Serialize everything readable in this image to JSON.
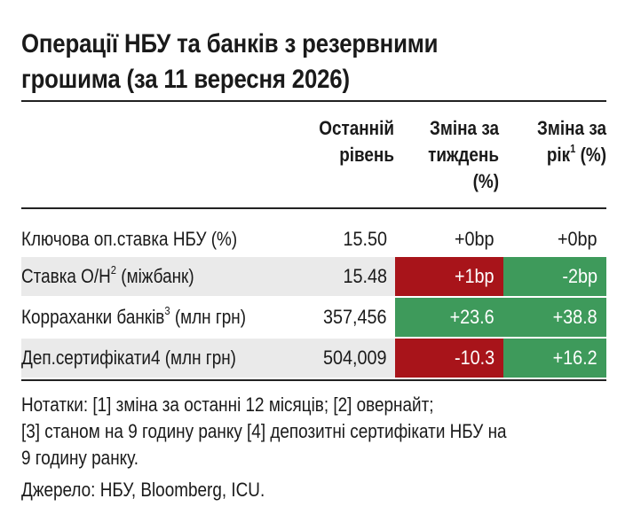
{
  "title": {
    "line1": "Операції НБУ та банків з резервними",
    "line2": "грошима (за 11 вересня 2026)"
  },
  "columns": {
    "last_level": [
      "Останній",
      "рівень"
    ],
    "weekly_change": [
      "Зміна за",
      "тиждень",
      "(%)"
    ],
    "yearly_change_line1": "Зміна за",
    "yearly_change_line2_pre": "рік",
    "yearly_change_sup": "1",
    "yearly_change_line2_post": " (%)"
  },
  "rows": [
    {
      "label_pre": "Ключова оп.ставка НБУ (%)",
      "label_sup": "",
      "label_post": "",
      "last": "15.50",
      "week": "+0bp",
      "year": "+0bp"
    },
    {
      "label_pre": "Ставка О/Н",
      "label_sup": "2",
      "label_post": " (міжбанк)",
      "last": "15.48",
      "week": "+1bp",
      "year": "-2bp"
    },
    {
      "label_pre": "Корраханки банків",
      "label_sup": "3",
      "label_post": " (млн грн)",
      "last": "357,456",
      "week": "+23.6",
      "year": "+38.8"
    },
    {
      "label_pre": "Деп.сертифікати4 (млн грн)",
      "label_sup": "",
      "label_post": "",
      "last": "504,009",
      "week": "-10.3",
      "year": "+16.2"
    }
  ],
  "notes": {
    "line1": "Нотатки: [1] зміна за останні 12 місяців; [2] овернайт;",
    "line2": "[3] станом на 9 годину ранку [4] депозитні сертифікати НБУ на",
    "line3": "9 годину ранку."
  },
  "source": "Джерело: НБУ, Bloomberg, ICU.",
  "colors": {
    "negative_cell": "#a8141a",
    "positive_cell": "#3e9a5b",
    "shade": "#eaeaea"
  }
}
